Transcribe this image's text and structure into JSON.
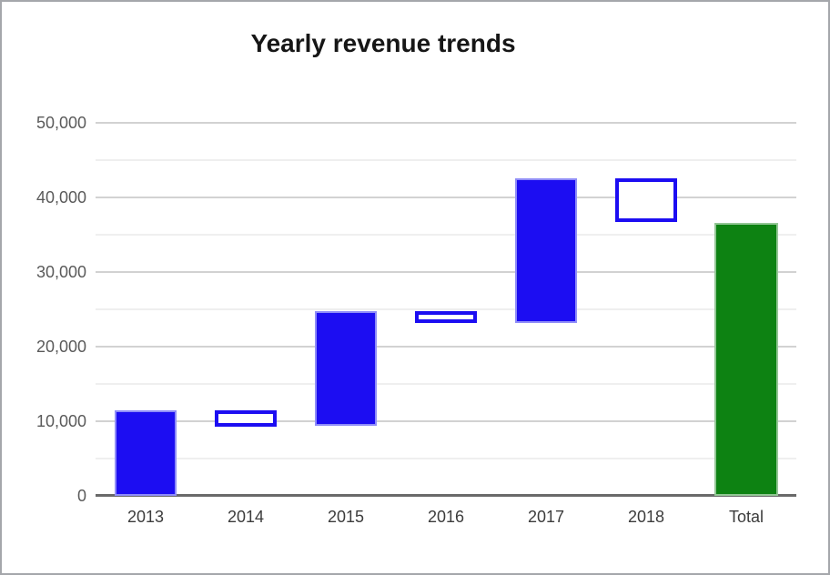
{
  "window": {
    "background": "#ffffff",
    "border_color": "#a5a7ab"
  },
  "chart_data": {
    "type": "waterfall",
    "title": "Yearly revenue trends",
    "categories": [
      "2013",
      "2014",
      "2015",
      "2016",
      "2017",
      "2018",
      "Total"
    ],
    "columns": [
      {
        "label": "2013",
        "delta": 11500,
        "kind": "increase",
        "start": 0,
        "end": 11500
      },
      {
        "label": "2014",
        "delta": -2200,
        "kind": "decrease",
        "start": 11500,
        "end": 9300
      },
      {
        "label": "2015",
        "delta": 15400,
        "kind": "increase",
        "start": 9300,
        "end": 24700
      },
      {
        "label": "2016",
        "delta": -1600,
        "kind": "decrease",
        "start": 24700,
        "end": 23100
      },
      {
        "label": "2017",
        "delta": 19400,
        "kind": "increase",
        "start": 23100,
        "end": 42500
      },
      {
        "label": "2018",
        "delta": -5900,
        "kind": "decrease",
        "start": 42500,
        "end": 36600
      },
      {
        "label": "Total",
        "delta": 36600,
        "kind": "total",
        "start": 0,
        "end": 36600
      }
    ],
    "y_axis": {
      "min": 0,
      "max": 50000,
      "major_step": 10000,
      "minor_step": 5000,
      "tick_labels": [
        "0",
        "10,000",
        "20,000",
        "30,000",
        "40,000",
        "50,000"
      ]
    },
    "legend": "none",
    "grid": true,
    "colors": {
      "increase_fill": "#1c0df2",
      "increase_edge": "#8f8df8",
      "decrease_fill": "#ffffff",
      "decrease_border": "#1c0df2",
      "total_fill": "#0d8212",
      "total_edge": "#93c695",
      "major_grid": "#d2d2d2",
      "minor_grid": "#efefef",
      "baseline": "#696969",
      "y_label_color": "#5a5a5a",
      "x_label_color": "#3c3c3c",
      "title_color": "#161616"
    }
  }
}
